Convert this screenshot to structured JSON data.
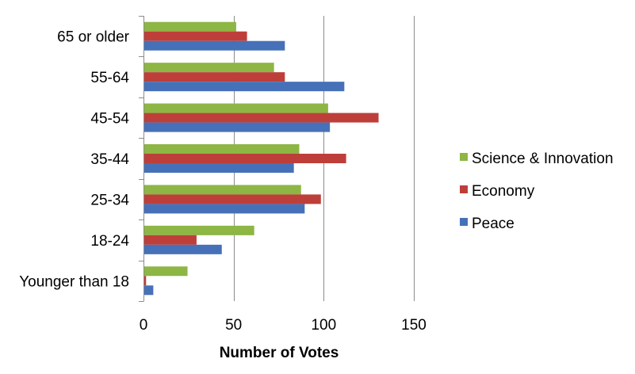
{
  "chart_data": {
    "type": "bar",
    "orientation": "horizontal",
    "title": "",
    "xlabel": "Number of Votes",
    "ylabel": "",
    "categories": [
      "Younger than 18",
      "18-24",
      "25-34",
      "35-44",
      "45-54",
      "55-64",
      "65 or older"
    ],
    "series": [
      {
        "name": "Science & Innovation",
        "color": "#8DB645",
        "values": [
          24,
          61,
          87,
          86,
          102,
          72,
          51
        ]
      },
      {
        "name": "Economy",
        "color": "#BE3F3A",
        "values": [
          1,
          29,
          98,
          112,
          130,
          78,
          57
        ]
      },
      {
        "name": "Peace",
        "color": "#4671B8",
        "values": [
          5,
          43,
          89,
          83,
          103,
          111,
          78
        ]
      }
    ],
    "xlim": [
      0,
      150
    ],
    "xticks": [
      0,
      50,
      100,
      150
    ],
    "grid": true,
    "legend_position": "right"
  }
}
